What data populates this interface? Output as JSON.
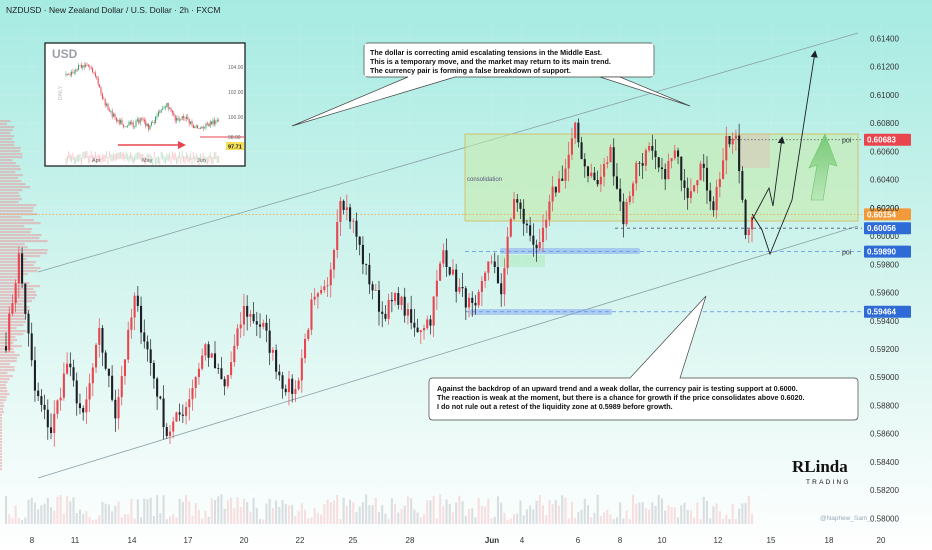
{
  "header": {
    "symbol_title": "NZDUSD · New Zealand Dollar / U.S. Dollar · 2h · FXCM"
  },
  "colors": {
    "background_top": "#a6ebe2",
    "background_bottom": "#ffffff",
    "bull": "#e8454f",
    "bear": "#1c1f26",
    "support_dashed": "#5b8def",
    "resistance_dotted": "#f3a03a",
    "price_badge_red": "#e8454f",
    "price_badge_orange": "#f29a3a",
    "price_badge_blue": "#2e6bd6",
    "consolidation_fill": "#c8eba8",
    "consolidation_border": "#d6b656",
    "channel_line": "#8aa0a8",
    "growth_arrow": "#6cc36a"
  },
  "chart_data": {
    "type": "candlestick",
    "symbol": "NZDUSD",
    "timeframe": "2h",
    "y_axis_ticks": [
      "0.61400",
      "0.61200",
      "0.61000",
      "0.60800",
      "0.60600",
      "0.60400",
      "0.60200",
      "0.60000",
      "0.59800",
      "0.59600",
      "0.59400",
      "0.59200",
      "0.59000",
      "0.58800",
      "0.58600",
      "0.58400",
      "0.58200",
      "0.58000"
    ],
    "x_axis_ticks": [
      "8",
      "11",
      "14",
      "17",
      "20",
      "22",
      "25",
      "28",
      "Jun",
      "4",
      "6",
      "8",
      "10",
      "12",
      "15",
      "18",
      "20"
    ],
    "ylim": [
      0.5796,
      0.6151
    ],
    "price_path_anchors": [
      [
        0,
        0.5925
      ],
      [
        4,
        0.5985
      ],
      [
        9,
        0.589
      ],
      [
        14,
        0.5862
      ],
      [
        19,
        0.591
      ],
      [
        24,
        0.587
      ],
      [
        29,
        0.593
      ],
      [
        34,
        0.5875
      ],
      [
        40,
        0.5955
      ],
      [
        45,
        0.591
      ],
      [
        50,
        0.586
      ],
      [
        56,
        0.588
      ],
      [
        62,
        0.5922
      ],
      [
        68,
        0.5892
      ],
      [
        74,
        0.5948
      ],
      [
        80,
        0.5935
      ],
      [
        86,
        0.5896
      ],
      [
        90,
        0.589
      ],
      [
        95,
        0.595
      ],
      [
        100,
        0.5962
      ],
      [
        104,
        0.603
      ],
      [
        108,
        0.6008
      ],
      [
        112,
        0.5975
      ],
      [
        117,
        0.5945
      ],
      [
        122,
        0.5957
      ],
      [
        127,
        0.5933
      ],
      [
        132,
        0.5942
      ],
      [
        136,
        0.599
      ],
      [
        140,
        0.5965
      ],
      [
        146,
        0.5945
      ],
      [
        150,
        0.5985
      ],
      [
        154,
        0.5962
      ],
      [
        158,
        0.6028
      ],
      [
        162,
        0.6005
      ],
      [
        166,
        0.599
      ],
      [
        170,
        0.603
      ],
      [
        174,
        0.6048
      ],
      [
        177,
        0.6075
      ],
      [
        180,
        0.605
      ],
      [
        184,
        0.6036
      ],
      [
        188,
        0.606
      ],
      [
        192,
        0.6012
      ],
      [
        196,
        0.605
      ],
      [
        200,
        0.606
      ],
      [
        204,
        0.6042
      ],
      [
        208,
        0.6058
      ],
      [
        212,
        0.6032
      ],
      [
        216,
        0.605
      ],
      [
        220,
        0.6022
      ],
      [
        224,
        0.6065
      ],
      [
        227,
        0.6068
      ],
      [
        230,
        0.6006
      ],
      [
        232,
        0.601
      ]
    ],
    "levels": [
      {
        "name": "poi-upper",
        "value": 0.60683,
        "label": "0.60683",
        "style": "dotted",
        "tag": "poi"
      },
      {
        "name": "mid-support",
        "value": 0.60154,
        "label": "0.60154",
        "style": "dotted-orange"
      },
      {
        "name": "current",
        "value": 0.60056,
        "label": "0.60056",
        "style": "dashed"
      },
      {
        "name": "poi-lower",
        "value": 0.5989,
        "label": "0.59890",
        "style": "dashed",
        "tag": "poi"
      },
      {
        "name": "low-support",
        "value": 0.59464,
        "label": "0.59464",
        "style": "dashed"
      }
    ],
    "price_axis_unlabeled_value": "0.60200",
    "consolidation_label": "consolidation",
    "poi_label": "poi"
  },
  "inset": {
    "title": "USD",
    "side_label": "DAILY",
    "x_ticks": [
      "Apr",
      "May",
      "Jun"
    ],
    "y_ticks": [
      "104.00",
      "102.00",
      "100.00",
      "98.00"
    ],
    "current_badge": "97.71"
  },
  "annotations": {
    "top_note_lines": [
      "The dollar is correcting amid escalating tensions in the Middle East.",
      "This is a temporary move, and the market may return to its main trend.",
      "The currency pair is forming a false breakdown of support."
    ],
    "bottom_note_lines": [
      "Against the backdrop of an upward trend and a weak dollar, the currency pair is testing support at 0.6000.",
      "The reaction is weak at the moment, but there is a chance for growth if the price consolidates above 0.6020.",
      "I do not rule out a retest of the liquidity zone at 0.5989 before growth."
    ]
  },
  "brand": {
    "logo_main": "RLinda",
    "logo_sub": "TRADING",
    "watermark": "@Naphew_Sam_"
  }
}
